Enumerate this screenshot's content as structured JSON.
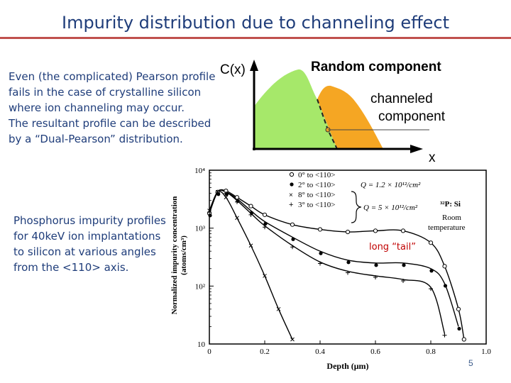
{
  "slide": {
    "title": "Impurity distribution due to channeling effect",
    "description_lines": [
      "Even (the complicated) Pearson profile",
      "fails in the case of crystalline silicon",
      "where ion channeling may occur.",
      "The resultant profile can be described",
      "by a “Dual-Pearson” distribution."
    ],
    "caption_lines": [
      "Phosphorus impurity profiles",
      "for 40keV ion implantations",
      "to silicon at various angles",
      "from the <110> axis."
    ],
    "page_number": "5",
    "colors": {
      "title": "#1f3d7a",
      "rule": "#c0504d",
      "random_fill": "#a6e86a",
      "channeled_fill": "#f5a623",
      "annotation": "#c00000"
    }
  },
  "schematic": {
    "y_axis_label": "C(x)",
    "x_axis_label": "x",
    "random_label": "Random component",
    "channeled_label_lines": [
      "channeled",
      "component"
    ]
  },
  "profile_plot": {
    "y_axis_label_lines": [
      "Normalized impurity concentration",
      "(atoms/cm³)"
    ],
    "x_axis_label": "Depth (μm)",
    "y_ticks": [
      "10⁴",
      "10³",
      "10²",
      "10"
    ],
    "x_ticks": [
      "0",
      "0.2",
      "0.4",
      "0.6",
      "0.8",
      "1.0"
    ],
    "legend": [
      {
        "marker": "open-circle",
        "label": "0° to <110>"
      },
      {
        "marker": "filled-circle",
        "label": "2° to <110>"
      },
      {
        "marker": "cross",
        "label": "8° to <110>"
      },
      {
        "marker": "plus",
        "label": "3° to <110>"
      }
    ],
    "dose_labels": [
      "Q = 1.2 × 10¹²/cm²",
      "Q = 5 × 10¹²/cm²"
    ],
    "species_label": "³²P: Si",
    "condition_lines": [
      "Room",
      "temperature"
    ],
    "annotation": "long “tail”"
  },
  "chart_data": [
    {
      "type": "area",
      "title": "",
      "xlabel": "x",
      "ylabel": "C(x)",
      "series": [
        {
          "name": "Random component",
          "x": [
            0.0,
            0.15,
            0.3,
            0.42,
            0.55
          ],
          "y": [
            0.15,
            0.75,
            1.0,
            0.6,
            0.0
          ]
        },
        {
          "name": "channeled component",
          "x": [
            0.42,
            0.5,
            0.6,
            0.7,
            0.82
          ],
          "y": [
            0.6,
            0.82,
            0.72,
            0.5,
            0.0
          ]
        }
      ]
    },
    {
      "type": "line",
      "title": "",
      "xlabel": "Depth (μm)",
      "ylabel": "Normalized impurity concentration (atoms/cm³)",
      "ylim": [
        10,
        10000
      ],
      "xlim": [
        0,
        1.0
      ],
      "yscale": "log",
      "series": [
        {
          "name": "0° to <110>",
          "x": [
            0.0,
            0.03,
            0.06,
            0.1,
            0.15,
            0.2,
            0.3,
            0.4,
            0.5,
            0.6,
            0.7,
            0.8,
            0.85,
            0.9,
            0.92
          ],
          "y": [
            1800,
            4200,
            4400,
            3400,
            2400,
            1700,
            1150,
            950,
            860,
            900,
            900,
            560,
            220,
            40,
            12
          ]
        },
        {
          "name": "2° to <110>",
          "x": [
            0.0,
            0.03,
            0.06,
            0.1,
            0.15,
            0.2,
            0.3,
            0.4,
            0.5,
            0.6,
            0.7,
            0.8,
            0.85,
            0.9
          ],
          "y": [
            1800,
            4200,
            4200,
            3200,
            2000,
            1300,
            700,
            400,
            280,
            250,
            250,
            200,
            110,
            20
          ]
        },
        {
          "name": "3° to <110>",
          "x": [
            0.0,
            0.03,
            0.06,
            0.1,
            0.15,
            0.2,
            0.3,
            0.4,
            0.5,
            0.6,
            0.7,
            0.8,
            0.85
          ],
          "y": [
            2000,
            4300,
            4200,
            3000,
            1800,
            1100,
            500,
            260,
            180,
            150,
            130,
            95,
            15
          ]
        },
        {
          "name": "8° to <110>",
          "x": [
            0.0,
            0.03,
            0.06,
            0.1,
            0.15,
            0.2,
            0.25,
            0.3
          ],
          "y": [
            2000,
            4200,
            3400,
            1500,
            500,
            150,
            40,
            12
          ]
        }
      ]
    }
  ]
}
